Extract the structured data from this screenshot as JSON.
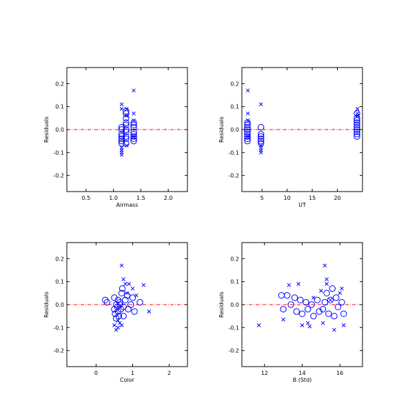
{
  "colors": {
    "marker": "#0000ff",
    "zero_line": "#ff0000",
    "axes": "#000000",
    "background": "#ffffff"
  },
  "chart_data": [
    {
      "type": "scatter",
      "xlabel": "Airmass",
      "ylabel": "Residuals",
      "xlim": [
        0.15,
        2.35
      ],
      "ylim": [
        -0.27,
        0.27
      ],
      "xticks": [
        0.5,
        1.0,
        1.5,
        2.0
      ],
      "xtick_labels": [
        "0.5",
        "1.0",
        "1.5",
        "2.0"
      ],
      "yticks": [
        -0.2,
        -0.1,
        0.0,
        0.1,
        0.2
      ],
      "ytick_labels": [
        "-0.2",
        "-0.1",
        "0.0",
        "0.1",
        "0.2"
      ],
      "reference_line": 0.0,
      "grid": false,
      "series": [
        {
          "marker": "circle",
          "points": [
            [
              1.15,
              0.01
            ],
            [
              1.15,
              -0.02
            ],
            [
              1.15,
              -0.04
            ],
            [
              1.15,
              -0.05
            ],
            [
              1.15,
              -0.06
            ],
            [
              1.15,
              -0.03
            ],
            [
              1.15,
              0.0
            ],
            [
              1.23,
              0.08
            ],
            [
              1.23,
              0.07
            ],
            [
              1.23,
              0.05
            ],
            [
              1.23,
              0.03
            ],
            [
              1.23,
              0.02
            ],
            [
              1.23,
              0.0
            ],
            [
              1.23,
              -0.01
            ],
            [
              1.23,
              -0.03
            ],
            [
              1.23,
              -0.04
            ],
            [
              1.23,
              -0.06
            ],
            [
              1.37,
              0.03
            ],
            [
              1.37,
              0.02
            ],
            [
              1.37,
              0.01
            ],
            [
              1.37,
              -0.01
            ],
            [
              1.37,
              -0.02
            ],
            [
              1.37,
              -0.03
            ],
            [
              1.37,
              -0.04
            ],
            [
              1.37,
              -0.05
            ]
          ]
        },
        {
          "marker": "x",
          "points": [
            [
              1.15,
              0.11
            ],
            [
              1.15,
              0.09
            ],
            [
              1.15,
              -0.08
            ],
            [
              1.15,
              -0.09
            ],
            [
              1.15,
              -0.1
            ],
            [
              1.15,
              -0.11
            ],
            [
              1.24,
              0.09
            ],
            [
              1.24,
              0.06
            ],
            [
              1.24,
              -0.07
            ],
            [
              1.37,
              0.17
            ],
            [
              1.37,
              0.07
            ],
            [
              1.37,
              0.04
            ],
            [
              1.37,
              -0.03
            ]
          ]
        }
      ]
    },
    {
      "type": "scatter",
      "xlabel": "UT",
      "ylabel": "Residuals",
      "xlim": [
        1.0,
        25.0
      ],
      "ylim": [
        -0.27,
        0.27
      ],
      "xticks": [
        5,
        10,
        15,
        20
      ],
      "xtick_labels": [
        "5",
        "10",
        "15",
        "20"
      ],
      "yticks": [
        -0.2,
        -0.1,
        0.0,
        0.1,
        0.2
      ],
      "ytick_labels": [
        "-0.2",
        "-0.1",
        "0.0",
        "0.1",
        "0.2"
      ],
      "reference_line": 0.0,
      "grid": false,
      "series": [
        {
          "marker": "circle",
          "points": [
            [
              2.1,
              0.03
            ],
            [
              2.1,
              0.02
            ],
            [
              2.1,
              0.01
            ],
            [
              2.1,
              0.0
            ],
            [
              2.1,
              -0.01
            ],
            [
              2.1,
              -0.02
            ],
            [
              2.1,
              -0.03
            ],
            [
              2.1,
              -0.04
            ],
            [
              2.1,
              -0.05
            ],
            [
              4.8,
              0.01
            ],
            [
              4.8,
              -0.02
            ],
            [
              4.8,
              -0.03
            ],
            [
              4.8,
              -0.04
            ],
            [
              4.8,
              -0.05
            ],
            [
              4.8,
              -0.06
            ],
            [
              23.9,
              0.07
            ],
            [
              23.9,
              0.05
            ],
            [
              23.9,
              0.04
            ],
            [
              23.9,
              0.03
            ],
            [
              23.9,
              0.02
            ],
            [
              23.9,
              0.01
            ],
            [
              23.9,
              0.0
            ],
            [
              23.9,
              -0.01
            ],
            [
              23.9,
              -0.02
            ],
            [
              23.9,
              -0.03
            ]
          ]
        },
        {
          "marker": "x",
          "points": [
            [
              2.2,
              0.17
            ],
            [
              2.2,
              0.07
            ],
            [
              2.2,
              0.04
            ],
            [
              2.2,
              -0.03
            ],
            [
              4.8,
              0.11
            ],
            [
              4.8,
              -0.07
            ],
            [
              4.8,
              -0.08
            ],
            [
              4.8,
              -0.09
            ],
            [
              4.8,
              -0.1
            ],
            [
              24.0,
              0.09
            ],
            [
              24.0,
              0.07
            ],
            [
              24.0,
              0.06
            ]
          ]
        }
      ]
    },
    {
      "type": "scatter",
      "xlabel": "Color",
      "ylabel": "Residuals",
      "xlim": [
        -0.8,
        2.5
      ],
      "ylim": [
        -0.27,
        0.27
      ],
      "xticks": [
        0,
        1,
        2
      ],
      "xtick_labels": [
        "0",
        "1",
        "2"
      ],
      "yticks": [
        -0.2,
        -0.1,
        0.0,
        0.1,
        0.2
      ],
      "ytick_labels": [
        "-0.2",
        "-0.1",
        "0.0",
        "0.1",
        "0.2"
      ],
      "reference_line": 0.0,
      "grid": false,
      "series": [
        {
          "marker": "circle",
          "points": [
            [
              0.25,
              0.02
            ],
            [
              0.3,
              0.01
            ],
            [
              0.5,
              0.03
            ],
            [
              0.5,
              -0.02
            ],
            [
              0.52,
              -0.04
            ],
            [
              0.55,
              0.0
            ],
            [
              0.58,
              -0.01
            ],
            [
              0.6,
              0.02
            ],
            [
              0.6,
              -0.03
            ],
            [
              0.62,
              -0.05
            ],
            [
              0.65,
              0.01
            ],
            [
              0.65,
              0.0
            ],
            [
              0.68,
              -0.02
            ],
            [
              0.7,
              0.05
            ],
            [
              0.72,
              0.07
            ],
            [
              0.75,
              -0.01
            ],
            [
              0.75,
              -0.05
            ],
            [
              0.8,
              0.02
            ],
            [
              0.85,
              0.04
            ],
            [
              0.88,
              -0.02
            ],
            [
              1.0,
              0.03
            ],
            [
              1.05,
              -0.03
            ],
            [
              1.2,
              0.01
            ],
            [
              0.55,
              -0.06
            ],
            [
              0.95,
              0.0
            ]
          ]
        },
        {
          "marker": "x",
          "points": [
            [
              0.5,
              -0.09
            ],
            [
              0.55,
              -0.11
            ],
            [
              0.6,
              -0.1
            ],
            [
              0.65,
              -0.08
            ],
            [
              0.7,
              -0.09
            ],
            [
              0.7,
              0.17
            ],
            [
              0.75,
              0.11
            ],
            [
              0.8,
              0.09
            ],
            [
              0.85,
              0.05
            ],
            [
              0.9,
              0.09
            ],
            [
              1.0,
              0.07
            ],
            [
              1.1,
              0.04
            ],
            [
              1.3,
              0.085
            ],
            [
              1.45,
              -0.03
            ],
            [
              0.6,
              -0.07
            ]
          ]
        }
      ]
    },
    {
      "type": "scatter",
      "xlabel": "B (Std)",
      "ylabel": "Residuals",
      "xlim": [
        10.8,
        17.2
      ],
      "ylim": [
        -0.27,
        0.27
      ],
      "xticks": [
        12,
        14,
        16
      ],
      "xtick_labels": [
        "12",
        "14",
        "16"
      ],
      "yticks": [
        -0.2,
        -0.1,
        0.0,
        0.1,
        0.2
      ],
      "ytick_labels": [
        "-0.2",
        "-0.1",
        "0.0",
        "0.1",
        "0.2"
      ],
      "reference_line": 0.0,
      "grid": false,
      "series": [
        {
          "marker": "circle",
          "points": [
            [
              12.9,
              0.04
            ],
            [
              13.0,
              -0.02
            ],
            [
              13.2,
              0.04
            ],
            [
              13.4,
              0.0
            ],
            [
              13.6,
              0.03
            ],
            [
              13.7,
              -0.03
            ],
            [
              13.9,
              0.02
            ],
            [
              14.0,
              -0.04
            ],
            [
              14.2,
              0.01
            ],
            [
              14.3,
              -0.02
            ],
            [
              14.5,
              0.0
            ],
            [
              14.6,
              -0.05
            ],
            [
              14.8,
              0.02
            ],
            [
              14.9,
              -0.03
            ],
            [
              15.1,
              -0.02
            ],
            [
              15.2,
              0.01
            ],
            [
              15.3,
              0.05
            ],
            [
              15.4,
              -0.04
            ],
            [
              15.5,
              0.02
            ],
            [
              15.6,
              0.07
            ],
            [
              15.7,
              -0.05
            ],
            [
              15.8,
              0.03
            ],
            [
              15.9,
              -0.01
            ],
            [
              16.1,
              0.01
            ],
            [
              16.2,
              -0.04
            ]
          ]
        },
        {
          "marker": "x",
          "points": [
            [
              11.7,
              -0.09
            ],
            [
              13.0,
              -0.065
            ],
            [
              13.3,
              0.085
            ],
            [
              13.8,
              0.09
            ],
            [
              14.0,
              -0.09
            ],
            [
              14.3,
              -0.08
            ],
            [
              14.4,
              -0.095
            ],
            [
              14.6,
              0.03
            ],
            [
              15.0,
              0.06
            ],
            [
              15.2,
              0.17
            ],
            [
              15.3,
              0.11
            ],
            [
              15.3,
              0.09
            ],
            [
              15.5,
              0.02
            ],
            [
              15.7,
              -0.11
            ],
            [
              16.0,
              0.05
            ],
            [
              16.1,
              0.07
            ],
            [
              16.2,
              -0.09
            ],
            [
              15.1,
              -0.08
            ]
          ]
        }
      ]
    }
  ]
}
